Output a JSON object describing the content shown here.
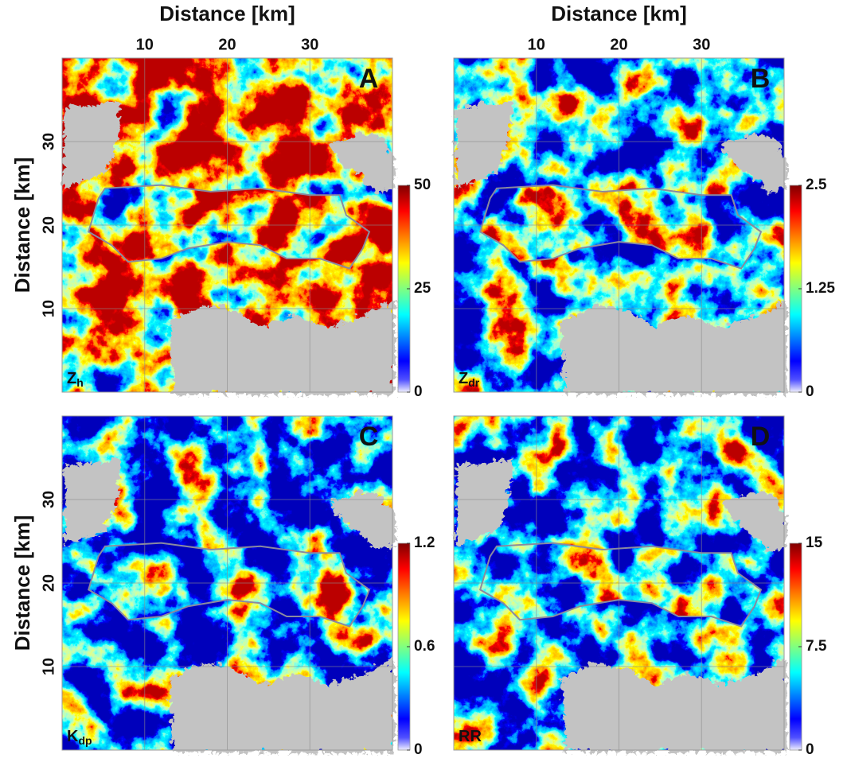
{
  "chart_data": [
    {
      "type": "heatmap",
      "panel_label": "A",
      "variable": {
        "symbol": "Z",
        "subscript": "h"
      },
      "xlabel": "Distance [km]",
      "ylabel": "Distance [km]",
      "xlim": [
        0,
        40
      ],
      "ylim": [
        0,
        40
      ],
      "xticks": [
        10,
        20,
        30
      ],
      "yticks": [
        10,
        20,
        30
      ],
      "grid": true,
      "colorbar": {
        "lim": [
          0,
          50
        ],
        "ticks": [
          0,
          25,
          50
        ]
      }
    },
    {
      "type": "heatmap",
      "panel_label": "B",
      "variable": {
        "symbol": "Z",
        "subscript": "dr"
      },
      "xlabel": "Distance [km]",
      "xlim": [
        0,
        40
      ],
      "ylim": [
        0,
        40
      ],
      "xticks": [
        10,
        20,
        30
      ],
      "yticks": [
        10,
        20,
        30
      ],
      "grid": true,
      "colorbar": {
        "lim": [
          0,
          2.5
        ],
        "ticks": [
          0,
          1.25,
          2.5
        ]
      }
    },
    {
      "type": "heatmap",
      "panel_label": "C",
      "variable": {
        "symbol": "K",
        "subscript": "dp"
      },
      "ylabel": "Distance [km]",
      "xlim": [
        0,
        40
      ],
      "ylim": [
        0,
        40
      ],
      "xticks": [
        10,
        20,
        30
      ],
      "yticks": [
        10,
        20,
        30
      ],
      "grid": true,
      "colorbar": {
        "lim": [
          0,
          1.2
        ],
        "ticks": [
          0,
          0.6,
          1.2
        ]
      }
    },
    {
      "type": "heatmap",
      "panel_label": "D",
      "variable": {
        "symbol": "RR"
      },
      "xlim": [
        0,
        40
      ],
      "ylim": [
        0,
        40
      ],
      "xticks": [
        10,
        20,
        30
      ],
      "yticks": [
        10,
        20,
        30
      ],
      "grid": true,
      "colorbar": {
        "lim": [
          0,
          15
        ],
        "ticks": [
          0,
          7.5,
          15
        ]
      }
    }
  ]
}
